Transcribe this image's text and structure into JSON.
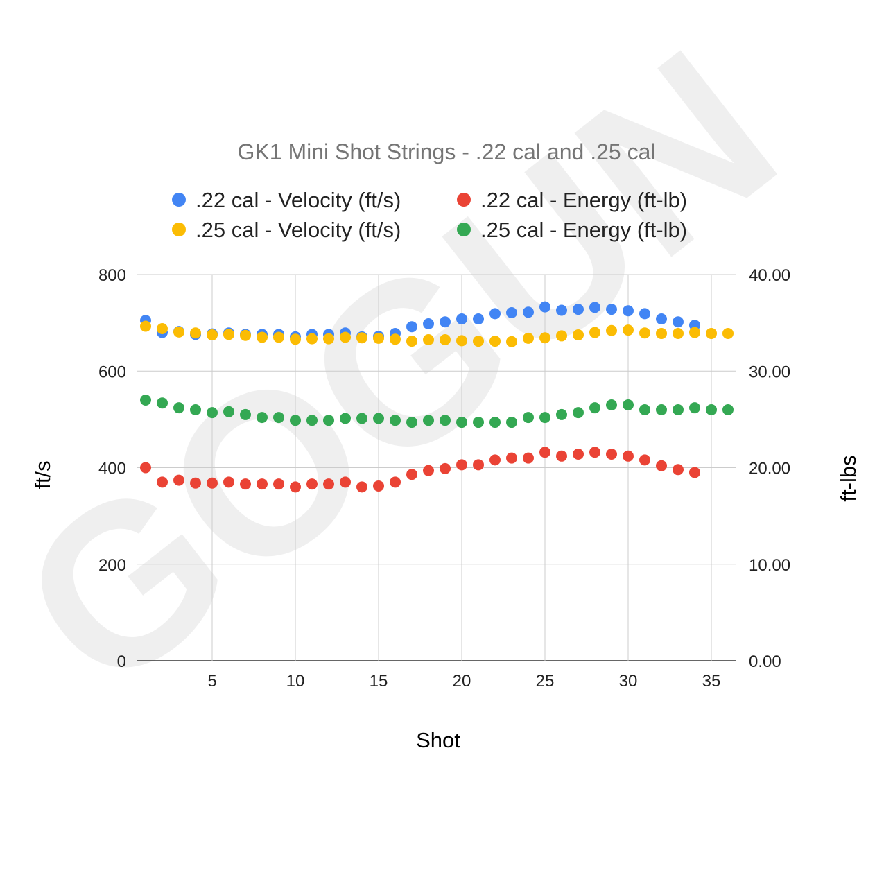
{
  "watermark": "GOGUN",
  "chart_data": {
    "type": "scatter",
    "title": "GK1 Mini Shot Strings - .22 cal and .25 cal",
    "xlabel": "Shot",
    "ylabel": "ft/s",
    "y2label": "ft-lbs",
    "xlim": [
      0.5,
      36.5
    ],
    "ylim": [
      0,
      800
    ],
    "y2lim": [
      0,
      40
    ],
    "xticks": [
      "5",
      "10",
      "15",
      "20",
      "25",
      "30",
      "35"
    ],
    "yticks": [
      "0",
      "200",
      "400",
      "600",
      "800"
    ],
    "y2ticks": [
      "0.00",
      "10.00",
      "20.00",
      "30.00",
      "40.00"
    ],
    "grid": true,
    "legend_position": "top",
    "series": [
      {
        "name": ".22 cal - Velocity (ft/s)",
        "axis": "left",
        "color": "#4285F4",
        "x": [
          1,
          2,
          3,
          4,
          5,
          6,
          7,
          8,
          9,
          10,
          11,
          12,
          13,
          14,
          15,
          16,
          17,
          18,
          19,
          20,
          21,
          22,
          23,
          24,
          25,
          26,
          27,
          28,
          29,
          30,
          31,
          32,
          33,
          34
        ],
        "values": [
          705,
          680,
          682,
          676,
          677,
          679,
          676,
          676,
          676,
          671,
          676,
          676,
          679,
          671,
          672,
          678,
          692,
          698,
          702,
          708,
          708,
          719,
          721,
          722,
          733,
          726,
          728,
          732,
          728,
          725,
          719,
          708,
          702,
          695
        ]
      },
      {
        "name": ".22 cal - Energy (ft-lb)",
        "axis": "right",
        "color": "#EA4335",
        "x": [
          1,
          2,
          3,
          4,
          5,
          6,
          7,
          8,
          9,
          10,
          11,
          12,
          13,
          14,
          15,
          16,
          17,
          18,
          19,
          20,
          21,
          22,
          23,
          24,
          25,
          26,
          27,
          28,
          29,
          30,
          31,
          32,
          33,
          34
        ],
        "values": [
          20.0,
          18.5,
          18.7,
          18.4,
          18.4,
          18.5,
          18.3,
          18.3,
          18.3,
          18.0,
          18.3,
          18.3,
          18.5,
          18.0,
          18.1,
          18.5,
          19.3,
          19.7,
          19.9,
          20.3,
          20.3,
          20.8,
          21.0,
          21.0,
          21.6,
          21.2,
          21.4,
          21.6,
          21.4,
          21.2,
          20.8,
          20.2,
          19.8,
          19.5
        ]
      },
      {
        "name": ".25 cal - Velocity (ft/s)",
        "axis": "left",
        "color": "#FBBC04",
        "x": [
          1,
          2,
          3,
          4,
          5,
          6,
          7,
          8,
          9,
          10,
          11,
          12,
          13,
          14,
          15,
          16,
          17,
          18,
          19,
          20,
          21,
          22,
          23,
          24,
          25,
          26,
          27,
          28,
          29,
          30,
          31,
          32,
          33,
          34,
          35,
          36
        ],
        "values": [
          693,
          688,
          681,
          679,
          675,
          676,
          674,
          670,
          670,
          666,
          667,
          667,
          670,
          669,
          668,
          666,
          662,
          665,
          665,
          663,
          662,
          662,
          661,
          668,
          669,
          673,
          675,
          680,
          684,
          685,
          679,
          678,
          678,
          680,
          678,
          678
        ]
      },
      {
        "name": ".25 cal - Energy (ft-lb)",
        "axis": "right",
        "color": "#34A853",
        "x": [
          1,
          2,
          3,
          4,
          5,
          6,
          7,
          8,
          9,
          10,
          11,
          12,
          13,
          14,
          15,
          16,
          17,
          18,
          19,
          20,
          21,
          22,
          23,
          24,
          25,
          26,
          27,
          28,
          29,
          30,
          31,
          32,
          33,
          34,
          35,
          36
        ],
        "values": [
          27.0,
          26.7,
          26.2,
          26.0,
          25.7,
          25.8,
          25.5,
          25.2,
          25.2,
          24.9,
          24.9,
          24.9,
          25.1,
          25.1,
          25.1,
          24.9,
          24.7,
          24.9,
          24.9,
          24.7,
          24.7,
          24.7,
          24.7,
          25.2,
          25.2,
          25.5,
          25.7,
          26.2,
          26.5,
          26.5,
          26.0,
          26.0,
          26.0,
          26.2,
          26.0,
          26.0
        ]
      }
    ]
  }
}
